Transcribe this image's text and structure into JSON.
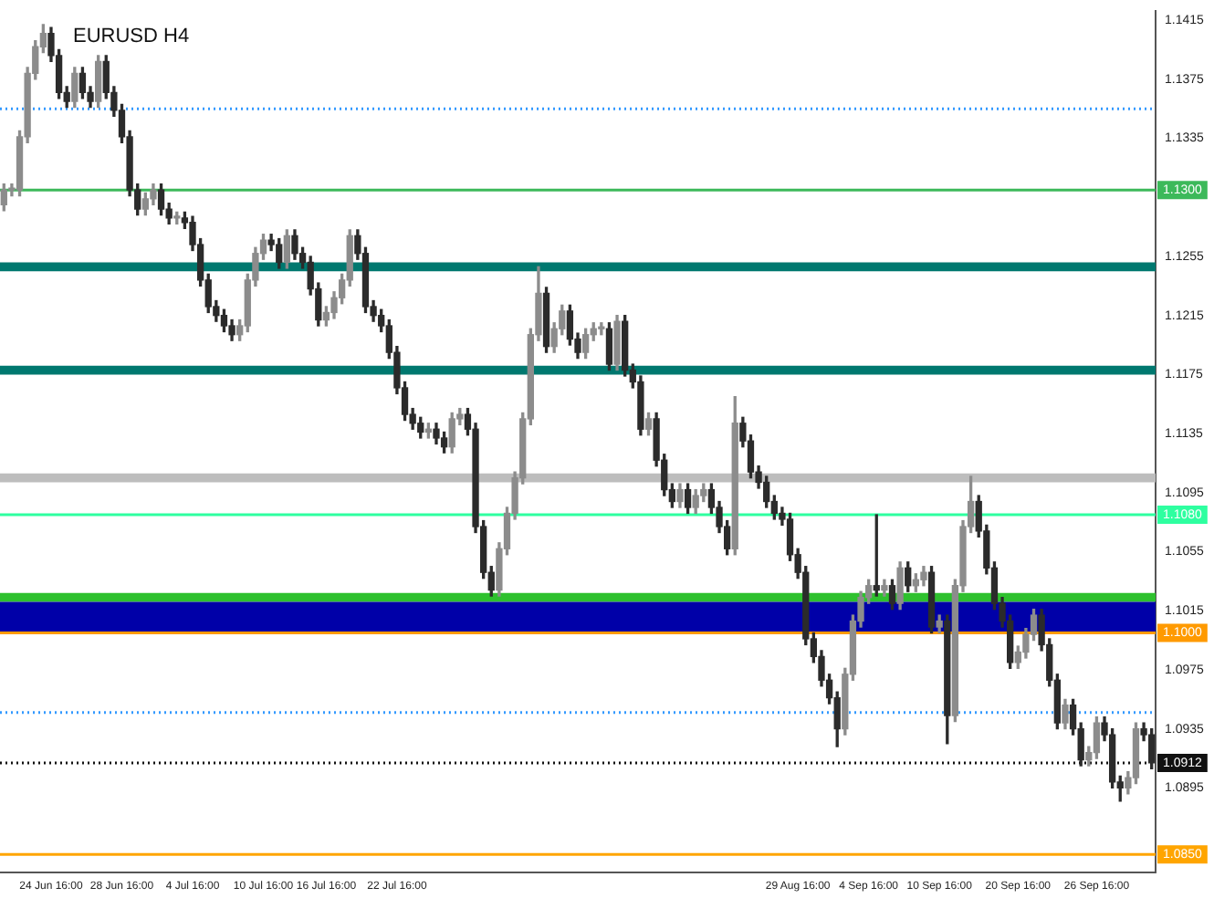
{
  "chart_data": {
    "type": "candlestick",
    "title": "EURUSD H4",
    "categories": [
      null,
      null,
      null,
      null,
      null,
      null,
      "24 Jun 16:00",
      null,
      null,
      null,
      null,
      null,
      null,
      null,
      null,
      "28 Jun 16:00",
      null,
      null,
      null,
      null,
      null,
      null,
      null,
      null,
      "4 Jul 16:00",
      null,
      null,
      null,
      null,
      null,
      null,
      null,
      null,
      "10 Jul 16:00",
      null,
      null,
      null,
      null,
      null,
      null,
      null,
      "16 Jul 16:00",
      null,
      null,
      null,
      null,
      null,
      null,
      null,
      null,
      "22 Jul 16:00",
      null,
      null,
      null,
      null,
      null,
      null,
      null,
      null,
      null,
      null,
      null,
      null,
      null,
      null,
      null,
      null,
      null,
      null,
      null,
      null,
      null,
      null,
      null,
      null,
      null,
      null,
      null,
      null,
      null,
      null,
      null,
      null,
      null,
      null,
      null,
      null,
      null,
      null,
      null,
      null,
      null,
      null,
      null,
      null,
      null,
      null,
      null,
      null,
      null,
      null,
      "29 Aug 16:00",
      null,
      null,
      null,
      null,
      null,
      null,
      null,
      null,
      "4 Sep 16:00",
      null,
      null,
      null,
      null,
      null,
      null,
      null,
      null,
      "10 Sep 16:00",
      null,
      null,
      null,
      null,
      null,
      null,
      null,
      null,
      null,
      "20 Sep 16:00",
      null,
      null,
      null,
      null,
      null,
      null,
      null,
      null,
      null,
      "26 Sep 16:00",
      null,
      null,
      null,
      null,
      null,
      null,
      null
    ],
    "ohlc": [
      [
        1.129,
        1.1304,
        1.1286,
        1.13
      ],
      [
        1.13,
        1.1304,
        1.1296,
        1.13
      ],
      [
        1.13,
        1.134,
        1.1296,
        1.1336
      ],
      [
        1.1336,
        1.1383,
        1.1332,
        1.1379
      ],
      [
        1.1379,
        1.1401,
        1.1375,
        1.1397
      ],
      [
        1.1397,
        1.1412,
        1.1393,
        1.1406
      ],
      [
        1.1406,
        1.141,
        1.1387,
        1.1391
      ],
      [
        1.1391,
        1.1395,
        1.1362,
        1.1366
      ],
      [
        1.1366,
        1.137,
        1.1356,
        1.136
      ],
      [
        1.136,
        1.1383,
        1.1356,
        1.1379
      ],
      [
        1.1379,
        1.1383,
        1.1362,
        1.1366
      ],
      [
        1.1366,
        1.137,
        1.1356,
        1.136
      ],
      [
        1.136,
        1.1391,
        1.1356,
        1.1387
      ],
      [
        1.1387,
        1.1391,
        1.1362,
        1.1366
      ],
      [
        1.1366,
        1.137,
        1.135,
        1.1354
      ],
      [
        1.1354,
        1.1358,
        1.1332,
        1.1336
      ],
      [
        1.1336,
        1.134,
        1.1296,
        1.13
      ],
      [
        1.13,
        1.1304,
        1.1283,
        1.1287
      ],
      [
        1.1287,
        1.1298,
        1.1283,
        1.1294
      ],
      [
        1.1294,
        1.1304,
        1.129,
        1.13
      ],
      [
        1.13,
        1.1304,
        1.1283,
        1.1287
      ],
      [
        1.1287,
        1.1291,
        1.1277,
        1.1281
      ],
      [
        1.1281,
        1.1285,
        1.1277,
        1.1281
      ],
      [
        1.1281,
        1.1285,
        1.1274,
        1.1278
      ],
      [
        1.1278,
        1.1282,
        1.1259,
        1.1263
      ],
      [
        1.1263,
        1.1267,
        1.1235,
        1.1239
      ],
      [
        1.1239,
        1.1243,
        1.1217,
        1.1221
      ],
      [
        1.1221,
        1.1225,
        1.1211,
        1.1215
      ],
      [
        1.1215,
        1.1219,
        1.1204,
        1.1208
      ],
      [
        1.1208,
        1.1212,
        1.1198,
        1.1202
      ],
      [
        1.1202,
        1.1212,
        1.1198,
        1.1208
      ],
      [
        1.1208,
        1.1243,
        1.1204,
        1.1239
      ],
      [
        1.1239,
        1.1261,
        1.1235,
        1.1257
      ],
      [
        1.1257,
        1.127,
        1.1253,
        1.1266
      ],
      [
        1.1266,
        1.127,
        1.1259,
        1.1263
      ],
      [
        1.1263,
        1.1267,
        1.1247,
        1.1251
      ],
      [
        1.1251,
        1.1273,
        1.1247,
        1.1269
      ],
      [
        1.1269,
        1.1273,
        1.1253,
        1.1257
      ],
      [
        1.1257,
        1.1261,
        1.1247,
        1.1251
      ],
      [
        1.1251,
        1.1255,
        1.1229,
        1.1233
      ],
      [
        1.1233,
        1.1237,
        1.1208,
        1.1212
      ],
      [
        1.1212,
        1.1221,
        1.1208,
        1.1217
      ],
      [
        1.1217,
        1.1231,
        1.1213,
        1.1227
      ],
      [
        1.1227,
        1.1243,
        1.1223,
        1.1239
      ],
      [
        1.1239,
        1.1273,
        1.1235,
        1.1269
      ],
      [
        1.1269,
        1.1273,
        1.1253,
        1.1257
      ],
      [
        1.1257,
        1.1261,
        1.1217,
        1.1221
      ],
      [
        1.1221,
        1.1225,
        1.1211,
        1.1215
      ],
      [
        1.1215,
        1.1219,
        1.1204,
        1.1208
      ],
      [
        1.1208,
        1.1212,
        1.1186,
        1.119
      ],
      [
        1.119,
        1.1194,
        1.1162,
        1.1166
      ],
      [
        1.1166,
        1.117,
        1.1144,
        1.1148
      ],
      [
        1.1148,
        1.1152,
        1.1138,
        1.1142
      ],
      [
        1.1142,
        1.1146,
        1.1132,
        1.1136
      ],
      [
        1.1136,
        1.1142,
        1.1132,
        1.1138
      ],
      [
        1.1138,
        1.1142,
        1.1128,
        1.1132
      ],
      [
        1.1132,
        1.1136,
        1.1122,
        1.1126
      ],
      [
        1.1126,
        1.1149,
        1.1122,
        1.1145
      ],
      [
        1.1145,
        1.1152,
        1.1141,
        1.1148
      ],
      [
        1.1148,
        1.1152,
        1.1134,
        1.1138
      ],
      [
        1.1138,
        1.1142,
        1.1068,
        1.1072
      ],
      [
        1.1072,
        1.1076,
        1.1037,
        1.1041
      ],
      [
        1.1041,
        1.1045,
        1.1025,
        1.1029
      ],
      [
        1.1029,
        1.1061,
        1.1025,
        1.1057
      ],
      [
        1.1057,
        1.1085,
        1.1053,
        1.1081
      ],
      [
        1.1081,
        1.1109,
        1.1077,
        1.1105
      ],
      [
        1.1105,
        1.1149,
        1.1101,
        1.1145
      ],
      [
        1.1145,
        1.1206,
        1.1141,
        1.1202
      ],
      [
        1.1202,
        1.1248,
        1.1198,
        1.123
      ],
      [
        1.123,
        1.1234,
        1.119,
        1.1194
      ],
      [
        1.1194,
        1.121,
        1.119,
        1.1206
      ],
      [
        1.1206,
        1.1222,
        1.1202,
        1.1218
      ],
      [
        1.1218,
        1.1222,
        1.1195,
        1.1199
      ],
      [
        1.1199,
        1.1203,
        1.1186,
        1.119
      ],
      [
        1.119,
        1.1206,
        1.1186,
        1.1202
      ],
      [
        1.1202,
        1.121,
        1.1198,
        1.1206
      ],
      [
        1.1206,
        1.121,
        1.1202,
        1.1206
      ],
      [
        1.1206,
        1.121,
        1.1178,
        1.1182
      ],
      [
        1.1182,
        1.1215,
        1.1178,
        1.1211
      ],
      [
        1.1211,
        1.1215,
        1.1174,
        1.1178
      ],
      [
        1.1178,
        1.1182,
        1.1166,
        1.117
      ],
      [
        1.117,
        1.1174,
        1.1134,
        1.1138
      ],
      [
        1.1138,
        1.1149,
        1.1134,
        1.1145
      ],
      [
        1.1145,
        1.1149,
        1.1113,
        1.1117
      ],
      [
        1.1117,
        1.1121,
        1.1093,
        1.1097
      ],
      [
        1.1097,
        1.1101,
        1.1085,
        1.1089
      ],
      [
        1.1089,
        1.1101,
        1.1085,
        1.1097
      ],
      [
        1.1097,
        1.1101,
        1.1081,
        1.1085
      ],
      [
        1.1085,
        1.1097,
        1.1081,
        1.1093
      ],
      [
        1.1093,
        1.1101,
        1.1089,
        1.1097
      ],
      [
        1.1097,
        1.1101,
        1.1081,
        1.1085
      ],
      [
        1.1085,
        1.1089,
        1.1068,
        1.1072
      ],
      [
        1.1072,
        1.1076,
        1.1053,
        1.1057
      ],
      [
        1.1057,
        1.116,
        1.1053,
        1.1142
      ],
      [
        1.1142,
        1.1146,
        1.1126,
        1.113
      ],
      [
        1.113,
        1.1134,
        1.1105,
        1.1109
      ],
      [
        1.1109,
        1.1113,
        1.1098,
        1.1102
      ],
      [
        1.1102,
        1.1106,
        1.1085,
        1.1089
      ],
      [
        1.1089,
        1.1093,
        1.1077,
        1.1081
      ],
      [
        1.1081,
        1.1085,
        1.1073,
        1.1077
      ],
      [
        1.1077,
        1.1081,
        1.1049,
        1.1053
      ],
      [
        1.1053,
        1.1057,
        1.1037,
        1.1041
      ],
      [
        1.1041,
        1.1045,
        1.0992,
        1.0996
      ],
      [
        1.0996,
        1.1,
        1.098,
        1.0984
      ],
      [
        1.0984,
        1.0988,
        1.0964,
        1.0968
      ],
      [
        1.0968,
        1.0972,
        1.0952,
        1.0956
      ],
      [
        1.0956,
        1.096,
        1.0923,
        1.0935
      ],
      [
        1.0935,
        1.0976,
        1.0931,
        1.0972
      ],
      [
        1.0972,
        1.1012,
        1.0968,
        1.1008
      ],
      [
        1.1008,
        1.1028,
        1.1004,
        1.1024
      ],
      [
        1.1024,
        1.1036,
        1.102,
        1.1032
      ],
      [
        1.1032,
        1.108,
        1.1025,
        1.1029
      ],
      [
        1.1029,
        1.1036,
        1.1025,
        1.1032
      ],
      [
        1.1032,
        1.1036,
        1.1016,
        1.102
      ],
      [
        1.102,
        1.1048,
        1.1016,
        1.1044
      ],
      [
        1.1044,
        1.1048,
        1.1028,
        1.1032
      ],
      [
        1.1032,
        1.104,
        1.1028,
        1.1036
      ],
      [
        1.1036,
        1.1045,
        1.1032,
        1.1041
      ],
      [
        1.1041,
        1.1045,
        1.1,
        1.1004
      ],
      [
        1.1004,
        1.1012,
        1.1,
        1.1008
      ],
      [
        1.1008,
        1.1012,
        1.0925,
        1.0944
      ],
      [
        1.0944,
        1.1036,
        1.094,
        1.1032
      ],
      [
        1.1032,
        1.1076,
        1.1028,
        1.1072
      ],
      [
        1.1072,
        1.1106,
        1.1068,
        1.1089
      ],
      [
        1.1089,
        1.1093,
        1.1065,
        1.1069
      ],
      [
        1.1069,
        1.1073,
        1.104,
        1.1044
      ],
      [
        1.1044,
        1.1048,
        1.1016,
        1.102
      ],
      [
        1.102,
        1.1024,
        1.1004,
        1.1008
      ],
      [
        1.1008,
        1.1012,
        1.0976,
        1.098
      ],
      [
        1.098,
        1.0991,
        1.0976,
        1.0987
      ],
      [
        1.0987,
        1.1003,
        1.0983,
        1.0999
      ],
      [
        1.0999,
        1.1016,
        1.0995,
        1.1012
      ],
      [
        1.1012,
        1.1016,
        1.0988,
        1.0992
      ],
      [
        1.0992,
        1.0996,
        1.0964,
        1.0968
      ],
      [
        1.0968,
        1.0972,
        1.0935,
        1.0939
      ],
      [
        1.0939,
        1.0955,
        1.0935,
        1.0951
      ],
      [
        1.0951,
        1.0955,
        1.0931,
        1.0935
      ],
      [
        1.0935,
        1.0939,
        1.091,
        1.0914
      ],
      [
        1.0914,
        1.0923,
        1.091,
        1.0919
      ],
      [
        1.0919,
        1.0943,
        1.0915,
        1.0939
      ],
      [
        1.0939,
        1.0943,
        1.0927,
        1.0931
      ],
      [
        1.0931,
        1.0935,
        1.0895,
        1.0899
      ],
      [
        1.0899,
        1.0903,
        1.0886,
        1.0895
      ],
      [
        1.0895,
        1.0906,
        1.0891,
        1.0902
      ],
      [
        1.0902,
        1.0939,
        1.0898,
        1.0935
      ],
      [
        1.0935,
        1.0939,
        1.0927,
        1.0931
      ],
      [
        1.0931,
        1.0935,
        1.0908,
        1.0912
      ]
    ],
    "ylim": [
      1.0838,
      1.1421
    ],
    "yticks": [
      1.0895,
      1.0935,
      1.0975,
      1.1015,
      1.1055,
      1.1095,
      1.1135,
      1.1175,
      1.1215,
      1.1255,
      1.1335,
      1.1375,
      1.1415
    ],
    "bands": [
      {
        "axis": "y",
        "from": 1.1245,
        "to": 1.1251,
        "color": "#00786f"
      },
      {
        "axis": "y",
        "from": 1.1175,
        "to": 1.1181,
        "color": "#00786f"
      },
      {
        "axis": "y",
        "from": 1.1102,
        "to": 1.1108,
        "color": "#bdbdbd"
      },
      {
        "axis": "y",
        "from": 1.1021,
        "to": 1.1027,
        "color": "#2ec12e"
      },
      {
        "axis": "y",
        "from": 1.1001,
        "to": 1.1021,
        "color": "#0000a8"
      }
    ],
    "ref_lines": [
      {
        "axis": "y",
        "value": 1.1355,
        "color": "#3399ff",
        "line_style": "dotted"
      },
      {
        "axis": "y",
        "value": 1.13,
        "label": "1.1300",
        "color": "#3cb95a",
        "line_style": "solid"
      },
      {
        "axis": "y",
        "value": 1.108,
        "label": "1.1080",
        "color": "#2effa0",
        "line_style": "solid"
      },
      {
        "axis": "y",
        "value": 1.1,
        "label": "1.1000",
        "color": "#ff9a00",
        "line_style": "solid"
      },
      {
        "axis": "y",
        "value": 1.0946,
        "color": "#3399ff",
        "line_style": "dotted"
      },
      {
        "axis": "y",
        "value": 1.0912,
        "label": "1.0912",
        "color": "#111111",
        "line_style": "dotted"
      },
      {
        "axis": "y",
        "value": 1.085,
        "label": "1.0850",
        "color": "#ffa500",
        "line_style": "solid"
      }
    ]
  }
}
